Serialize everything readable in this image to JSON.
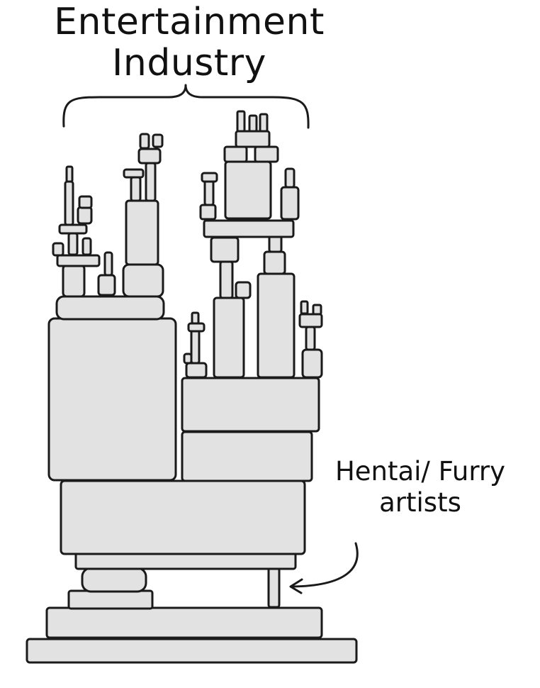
{
  "diagram": {
    "title_lines": [
      "Entertainment",
      "Industry"
    ],
    "annotation_lines": [
      "Hentai/ Furry",
      "artists"
    ],
    "colors": {
      "block_fill": "#e2e2e2",
      "outline": "#1a1a1a",
      "background": "#ffffff"
    }
  }
}
